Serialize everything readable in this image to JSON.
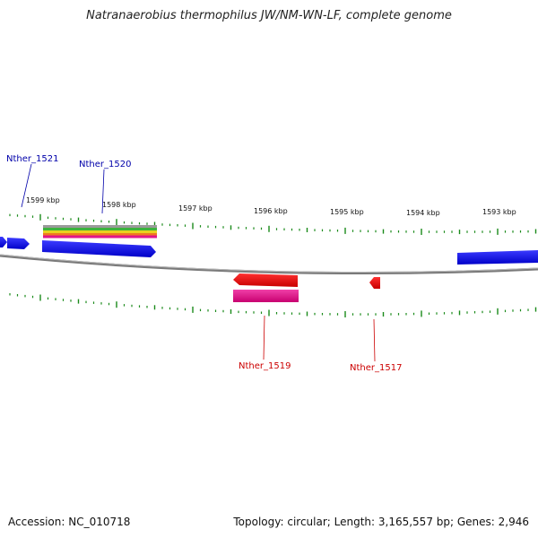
{
  "title": "Natranaerobius thermophilus JW/NM-WN-LF, complete genome",
  "footer": {
    "accession": "Accession: NC_010718",
    "summary": "Topology: circular; Length: 3,165,557 bp; Genes: 2,946"
  },
  "colors": {
    "forward_gene": "#0000ee",
    "reverse_gene": "#ee0000",
    "reverse_gene_secondary": "#e0148c",
    "forward_label": "#0000aa",
    "reverse_label": "#cc0000",
    "tick": "#1a8a1a",
    "backbone": "#888888"
  },
  "scale": {
    "kbp_labels": [
      "1599 kbp",
      "1598 kbp",
      "1597 kbp",
      "1596 kbp",
      "1595 kbp",
      "1594 kbp",
      "1593 kbp"
    ]
  },
  "gene_labels": [
    {
      "id": "g1521",
      "text": "Nther_1521",
      "strand": "forward"
    },
    {
      "id": "g1520",
      "text": "Nther_1520",
      "strand": "forward"
    },
    {
      "id": "g1519",
      "text": "Nther_1519",
      "strand": "reverse"
    },
    {
      "id": "g1517",
      "text": "Nther_1517",
      "strand": "reverse"
    }
  ]
}
